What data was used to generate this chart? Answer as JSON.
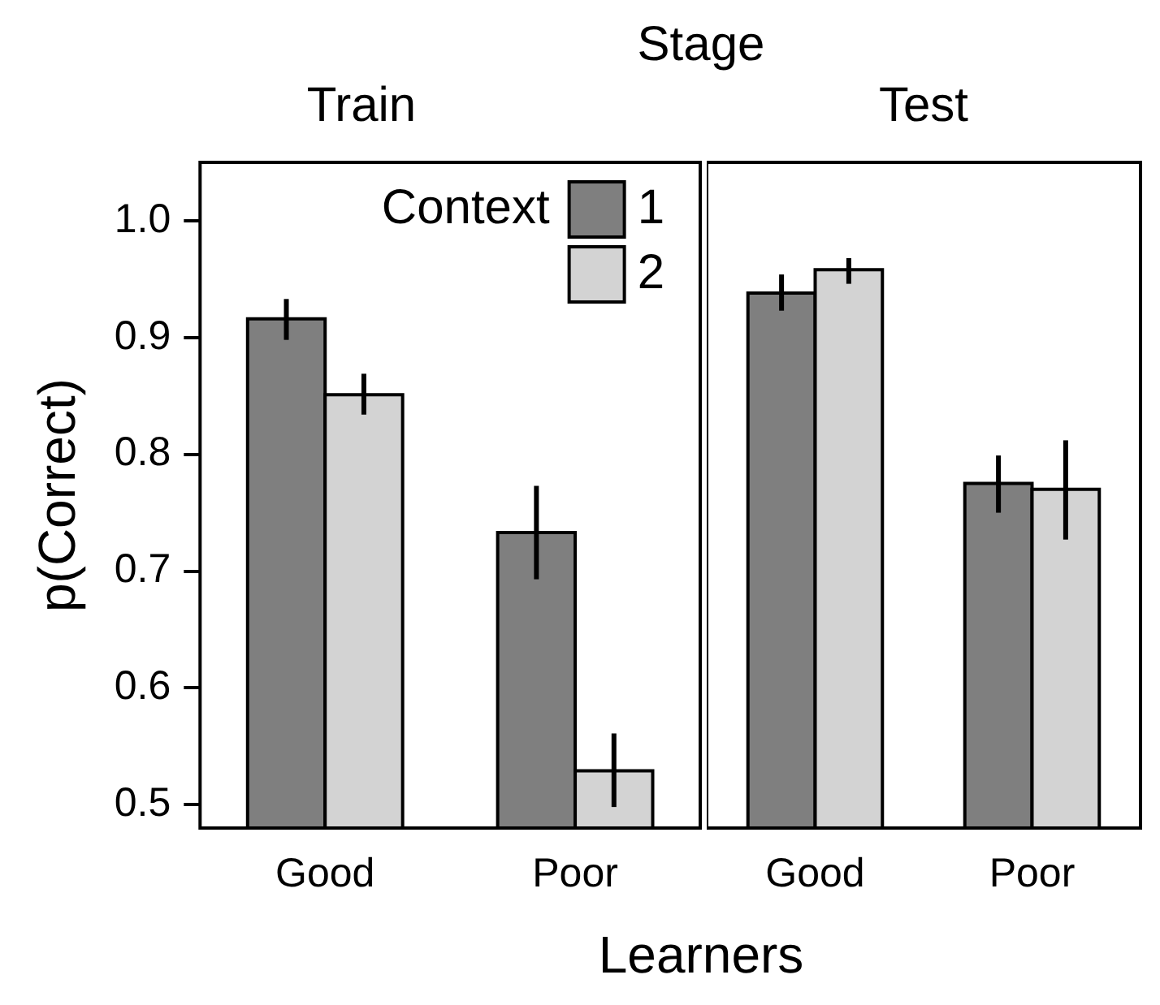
{
  "chart_data": [
    {
      "type": "bar",
      "title": "Train",
      "categories": [
        "Good",
        "Poor"
      ],
      "annotations": [
        "Stage"
      ],
      "xlabel": "Learners",
      "ylabel": "p(Correct)",
      "legend": "top right",
      "legend_title": "Context",
      "series": [
        {
          "name": "1",
          "color": "#7f7f7f",
          "values": [
            0.916,
            0.733
          ],
          "errors": [
            [
              0.898,
              0.933
            ],
            [
              0.693,
              0.773
            ]
          ]
        },
        {
          "name": "2",
          "color": "#d3d3d3",
          "values": [
            0.851,
            0.529
          ],
          "errors": [
            [
              0.834,
              0.869
            ],
            [
              0.498,
              0.561
            ]
          ]
        }
      ],
      "ylim": [
        0.48,
        1.05
      ],
      "yticks": [
        0.5,
        0.6,
        0.7,
        0.8,
        0.9,
        {
          "value": 1,
          "label": "1.0"
        }
      ]
    },
    {
      "type": "bar",
      "title": "Test",
      "categories": [
        "Good",
        "Poor"
      ],
      "tick_labels": "x",
      "series": [
        {
          "name": "1",
          "color": "#7f7f7f",
          "values": [
            0.938,
            0.775
          ],
          "errors": [
            [
              0.923,
              0.954
            ],
            [
              0.75,
              0.799
            ]
          ]
        },
        {
          "name": "2",
          "color": "#d3d3d3",
          "values": [
            0.958,
            0.77
          ],
          "errors": [
            [
              0.946,
              0.968
            ],
            [
              0.727,
              0.812
            ]
          ]
        }
      ],
      "ylim": [
        0.48,
        1.05
      ]
    }
  ]
}
